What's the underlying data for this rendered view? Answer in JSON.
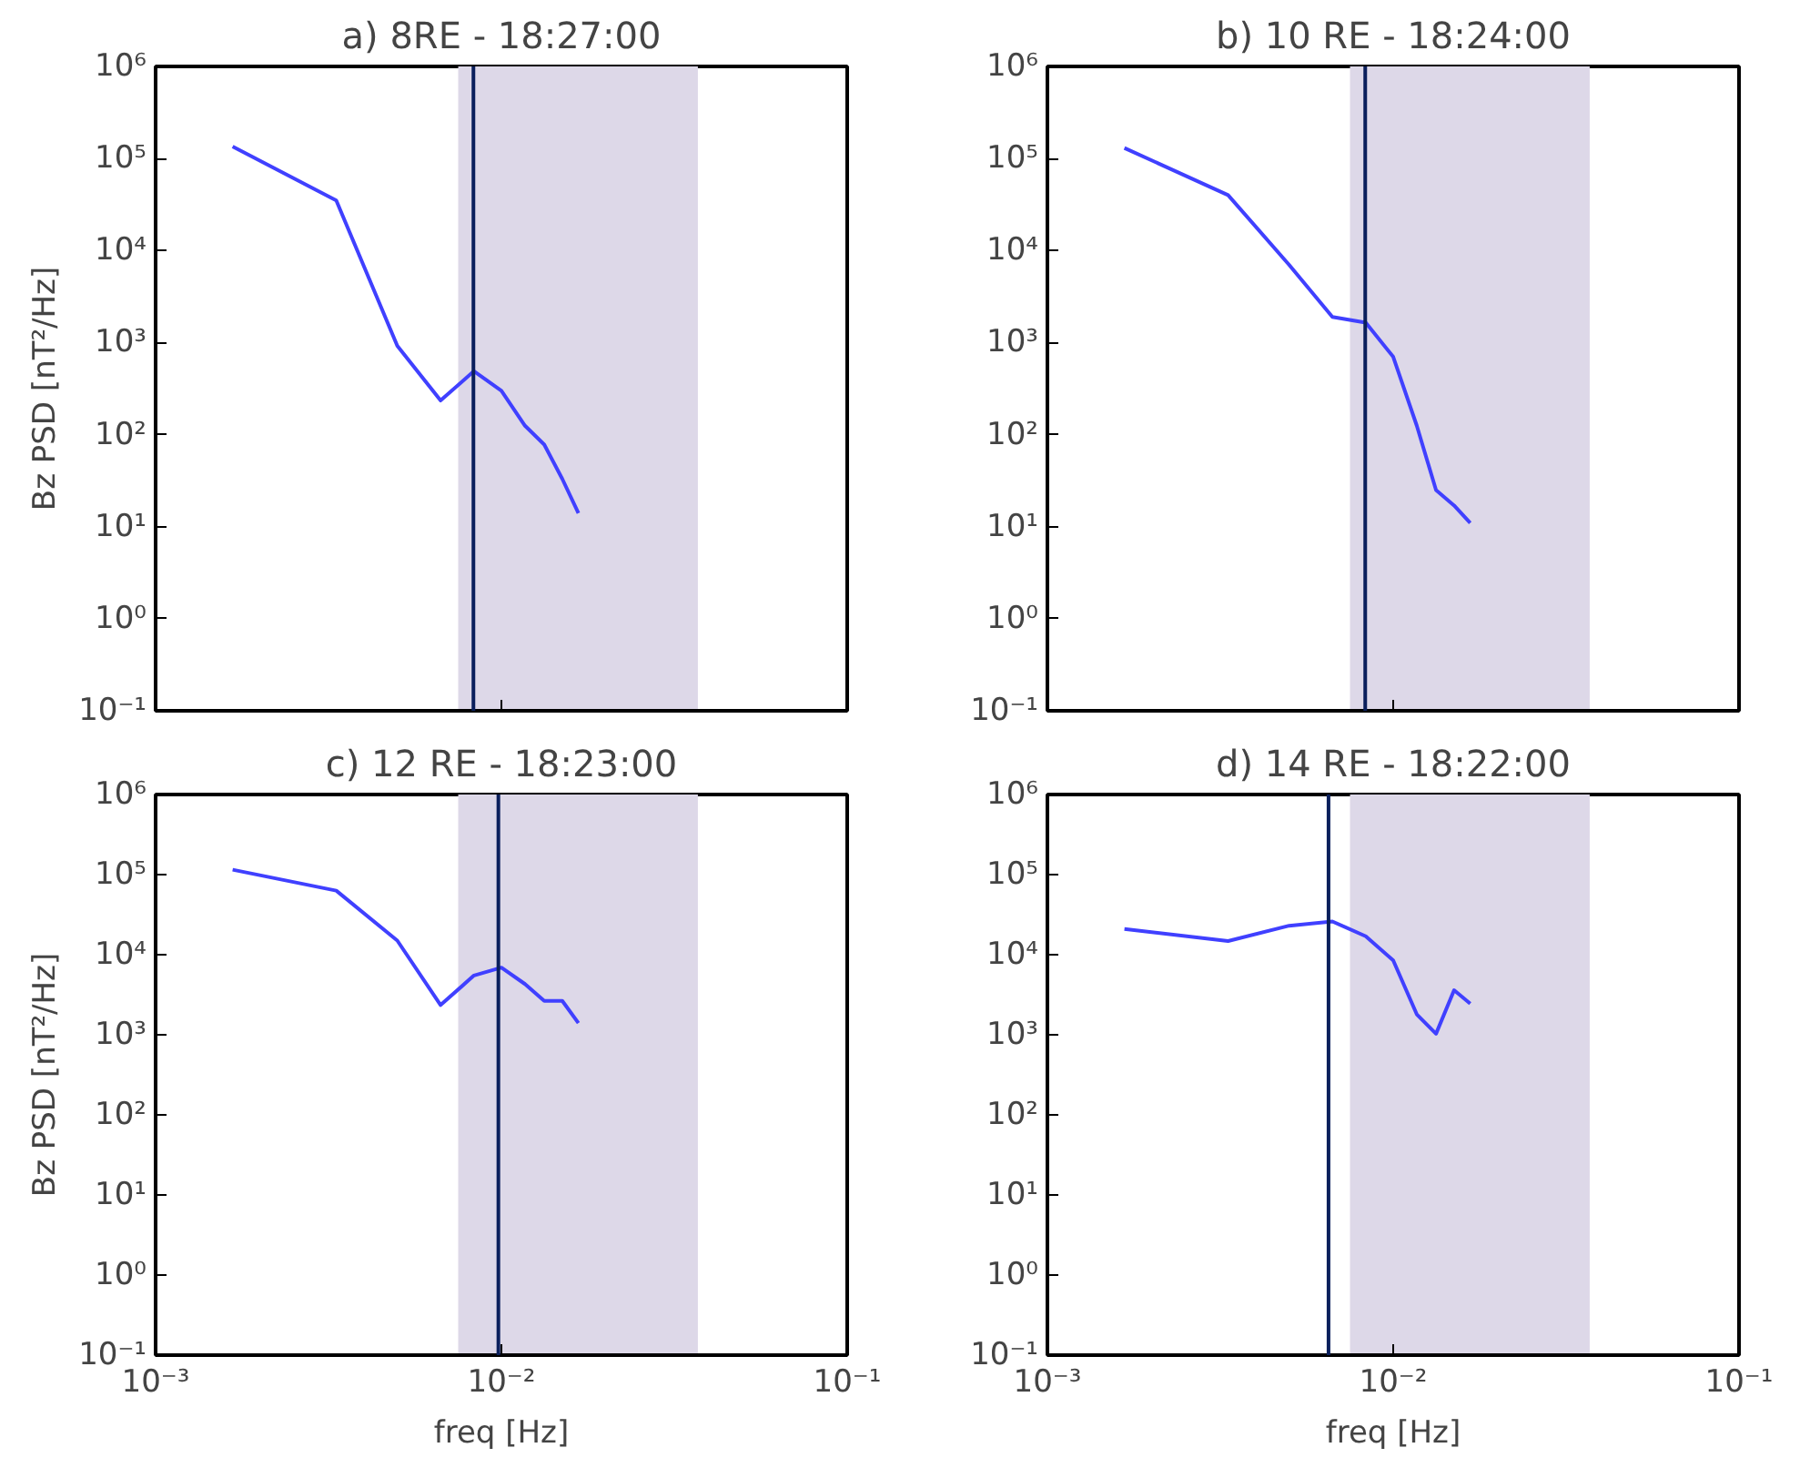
{
  "chart_data": [
    {
      "type": "line",
      "title": "a) 8RE - 18:27:00",
      "ylabel": "Bz PSD [nT²/Hz]",
      "log": "xy",
      "tick_labels": "y",
      "x": [
        0.00167,
        0.00333,
        0.005,
        0.00667,
        0.00833,
        0.01,
        0.0117,
        0.0133,
        0.015,
        0.0167
      ],
      "series": [
        {
          "color": "#4040ff",
          "values": [
            135000,
            35000,
            920,
            235,
            490,
            300,
            125,
            78,
            33,
            14
          ]
        }
      ],
      "xlim": [
        0.001,
        0.1
      ],
      "ylim": [
        0.1,
        1000000
      ],
      "xticks": [
        0.001,
        0.01,
        0.1
      ],
      "yticks": [
        {
          "value": 0.1,
          "label": "10⁻¹"
        },
        {
          "value": 1,
          "label": "10⁰"
        },
        {
          "value": 10,
          "label": "10¹"
        },
        {
          "value": 100,
          "label": "10²"
        },
        {
          "value": 1000,
          "label": "10³"
        },
        {
          "value": 10000,
          "label": "10⁴"
        },
        {
          "value": 100000,
          "label": "10⁵"
        },
        {
          "value": 1000000,
          "label": "10⁶"
        }
      ],
      "ref_lines": [
        {
          "axis": "x",
          "value": 0.0083,
          "color": "#0a1f5c"
        }
      ],
      "bands": [
        {
          "axis": "x",
          "from": 0.0075,
          "to": 0.037,
          "color": "#ddd8e8"
        }
      ]
    },
    {
      "type": "line",
      "title": "b) 10 RE - 18:24:00",
      "log": "xy",
      "tick_labels": "y",
      "x": [
        0.00167,
        0.00333,
        0.005,
        0.00667,
        0.00833,
        0.01,
        0.0117,
        0.0133,
        0.015,
        0.0167
      ],
      "series": [
        {
          "color": "#4040ff",
          "values": [
            130000,
            40000,
            7000,
            1900,
            1650,
            700,
            125,
            25,
            17,
            11
          ]
        }
      ],
      "xlim": [
        0.001,
        0.1
      ],
      "ylim": [
        0.1,
        1000000
      ],
      "xticks": [
        0.001,
        0.01,
        0.1
      ],
      "yticks": [
        {
          "value": 0.1,
          "label": "10⁻¹"
        },
        {
          "value": 1,
          "label": "10⁰"
        },
        {
          "value": 10,
          "label": "10¹"
        },
        {
          "value": 100,
          "label": "10²"
        },
        {
          "value": 1000,
          "label": "10³"
        },
        {
          "value": 10000,
          "label": "10⁴"
        },
        {
          "value": 100000,
          "label": "10⁵"
        },
        {
          "value": 1000000,
          "label": "10⁶"
        }
      ],
      "ref_lines": [
        {
          "axis": "x",
          "value": 0.0083,
          "color": "#0a1f5c"
        }
      ],
      "bands": [
        {
          "axis": "x",
          "from": 0.0075,
          "to": 0.037,
          "color": "#ddd8e8"
        }
      ]
    },
    {
      "type": "line",
      "title": "c) 12 RE - 18:23:00",
      "xlabel": "freq [Hz]",
      "ylabel": "Bz PSD [nT²/Hz]",
      "log": "xy",
      "x": [
        0.00167,
        0.00333,
        0.005,
        0.00667,
        0.00833,
        0.01,
        0.0117,
        0.0133,
        0.015,
        0.0167
      ],
      "series": [
        {
          "color": "#4040ff",
          "values": [
            115000,
            63000,
            15000,
            2350,
            5500,
            6900,
            4300,
            2650,
            2650,
            1400
          ]
        }
      ],
      "xlim": [
        0.001,
        0.1
      ],
      "ylim": [
        0.1,
        1000000
      ],
      "xticks": [
        {
          "value": 0.001,
          "label": "10⁻³"
        },
        {
          "value": 0.01,
          "label": "10⁻²"
        },
        {
          "value": 0.1,
          "label": "10⁻¹"
        }
      ],
      "yticks": [
        {
          "value": 0.1,
          "label": "10⁻¹"
        },
        {
          "value": 1,
          "label": "10⁰"
        },
        {
          "value": 10,
          "label": "10¹"
        },
        {
          "value": 100,
          "label": "10²"
        },
        {
          "value": 1000,
          "label": "10³"
        },
        {
          "value": 10000,
          "label": "10⁴"
        },
        {
          "value": 100000,
          "label": "10⁵"
        },
        {
          "value": 1000000,
          "label": "10⁶"
        }
      ],
      "ref_lines": [
        {
          "axis": "x",
          "value": 0.0098,
          "color": "#0a1f5c"
        }
      ],
      "bands": [
        {
          "axis": "x",
          "from": 0.0075,
          "to": 0.037,
          "color": "#ddd8e8"
        }
      ]
    },
    {
      "type": "line",
      "title": "d) 14 RE - 18:22:00",
      "xlabel": "freq [Hz]",
      "log": "xy",
      "x": [
        0.00167,
        0.00333,
        0.005,
        0.00667,
        0.00833,
        0.01,
        0.0117,
        0.0133,
        0.015,
        0.0167
      ],
      "series": [
        {
          "color": "#4040ff",
          "values": [
            21000,
            14800,
            23000,
            26000,
            17000,
            8500,
            1800,
            1030,
            3600,
            2450
          ]
        }
      ],
      "xlim": [
        0.001,
        0.1
      ],
      "ylim": [
        0.1,
        1000000
      ],
      "xticks": [
        {
          "value": 0.001,
          "label": "10⁻³"
        },
        {
          "value": 0.01,
          "label": "10⁻²"
        },
        {
          "value": 0.1,
          "label": "10⁻¹"
        }
      ],
      "yticks": [
        {
          "value": 0.1,
          "label": "10⁻¹"
        },
        {
          "value": 1,
          "label": "10⁰"
        },
        {
          "value": 10,
          "label": "10¹"
        },
        {
          "value": 100,
          "label": "10²"
        },
        {
          "value": 1000,
          "label": "10³"
        },
        {
          "value": 10000,
          "label": "10⁴"
        },
        {
          "value": 100000,
          "label": "10⁵"
        },
        {
          "value": 1000000,
          "label": "10⁶"
        }
      ],
      "ref_lines": [
        {
          "axis": "x",
          "value": 0.0065,
          "color": "#0a1f5c"
        }
      ],
      "bands": [
        {
          "axis": "x",
          "from": 0.0075,
          "to": 0.037,
          "color": "#ddd8e8"
        }
      ]
    }
  ]
}
